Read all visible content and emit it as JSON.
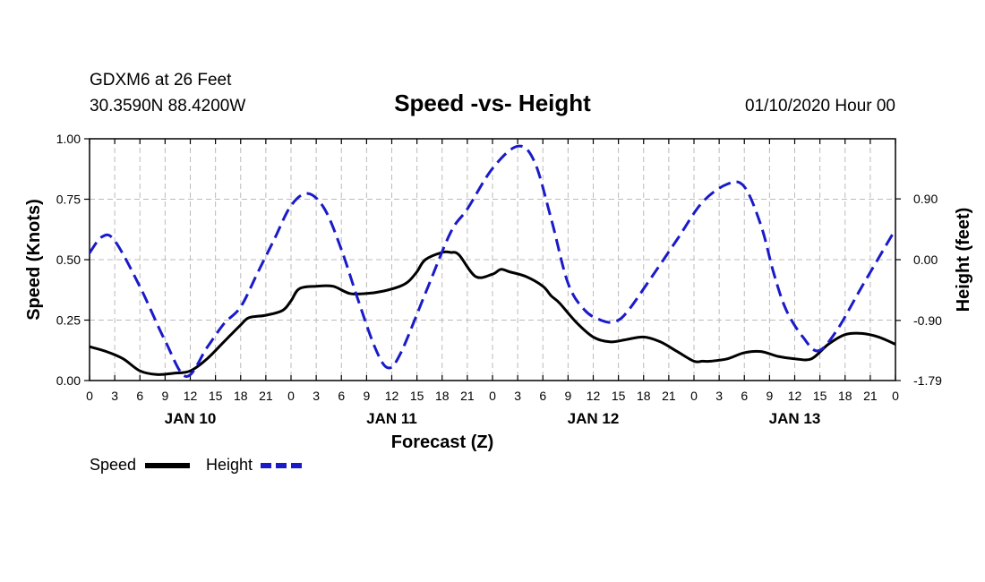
{
  "header": {
    "station": "GDXM6 at 26 Feet",
    "location": "30.3590N 88.4200W",
    "title": "Speed -vs- Height",
    "issued": "01/10/2020 Hour 00"
  },
  "legend": {
    "speed_label": "Speed",
    "height_label": "Height"
  },
  "colors": {
    "speed": "#000000",
    "height": "#1a1ac8",
    "grid": "#bbbbbb"
  },
  "chart_data": {
    "type": "line",
    "title": "Speed -vs- Height",
    "xlabel": "Forecast (Z)",
    "ylabel_left": "Speed (Knots)",
    "ylabel_right": "Height (feet)",
    "x_range": [
      0,
      96
    ],
    "y_left_range": [
      0,
      1.0
    ],
    "y_right_range": [
      -1.79,
      1.79
    ],
    "y_left_ticks": [
      "0.00",
      "0.25",
      "0.50",
      "0.75",
      "1.00"
    ],
    "y_right_ticks": [
      "-1.79",
      "-0.90",
      "0.00",
      "0.90"
    ],
    "y_right_tick_values": [
      -1.79,
      -0.9,
      0.0,
      0.9
    ],
    "x_ticks": [
      0,
      3,
      6,
      9,
      12,
      15,
      18,
      21,
      24,
      27,
      30,
      33,
      36,
      39,
      42,
      45,
      48,
      51,
      54,
      57,
      60,
      63,
      66,
      69,
      72,
      75,
      78,
      81,
      84,
      87,
      90,
      93,
      96
    ],
    "x_tick_labels": [
      "0",
      "3",
      "6",
      "9",
      "12",
      "15",
      "18",
      "21",
      "0",
      "3",
      "6",
      "9",
      "12",
      "15",
      "18",
      "21",
      "0",
      "3",
      "6",
      "9",
      "12",
      "15",
      "18",
      "21",
      "0",
      "3",
      "6",
      "9",
      "12",
      "15",
      "18",
      "21",
      "0"
    ],
    "date_labels": [
      {
        "x": 12,
        "label": "JAN 10"
      },
      {
        "x": 36,
        "label": "JAN 11"
      },
      {
        "x": 60,
        "label": "JAN 12"
      },
      {
        "x": 84,
        "label": "JAN 13"
      }
    ],
    "grid": true,
    "series": [
      {
        "name": "Speed",
        "axis": "left",
        "style": "solid",
        "x": [
          0,
          2,
          4,
          6,
          8,
          10,
          12,
          14,
          16,
          18,
          19,
          21,
          23,
          24,
          25,
          27,
          29,
          31,
          33,
          35,
          37,
          38,
          39,
          40,
          42,
          43,
          44,
          46,
          48,
          49,
          50,
          52,
          54,
          55,
          56,
          58,
          60,
          62,
          64,
          66,
          68,
          70,
          72,
          73,
          74,
          76,
          78,
          80,
          82,
          84,
          86,
          88,
          90,
          92,
          94,
          96
        ],
        "values": [
          0.14,
          0.12,
          0.09,
          0.04,
          0.025,
          0.03,
          0.04,
          0.09,
          0.16,
          0.23,
          0.26,
          0.27,
          0.29,
          0.33,
          0.38,
          0.39,
          0.39,
          0.36,
          0.36,
          0.37,
          0.39,
          0.41,
          0.45,
          0.5,
          0.53,
          0.53,
          0.52,
          0.43,
          0.44,
          0.46,
          0.45,
          0.43,
          0.39,
          0.35,
          0.32,
          0.24,
          0.18,
          0.16,
          0.17,
          0.18,
          0.16,
          0.12,
          0.08,
          0.08,
          0.08,
          0.09,
          0.115,
          0.12,
          0.1,
          0.09,
          0.09,
          0.15,
          0.19,
          0.195,
          0.18,
          0.15
        ]
      },
      {
        "name": "Height",
        "axis": "right",
        "style": "dashed",
        "x": [
          0,
          1.5,
          3,
          6,
          9,
          11.5,
          14,
          16,
          18,
          20,
          22,
          24,
          26,
          28,
          30,
          32,
          34,
          35.5,
          37,
          40,
          43,
          45,
          48,
          51,
          53,
          55,
          57,
          59,
          61,
          62.5,
          64,
          67,
          70,
          73,
          76,
          78,
          80,
          81.5,
          83,
          85,
          86.8,
          89,
          92,
          96
        ],
        "values": [
          0.1,
          0.34,
          0.28,
          -0.4,
          -1.2,
          -1.73,
          -1.3,
          -0.95,
          -0.7,
          -0.2,
          0.3,
          0.8,
          0.98,
          0.75,
          0.15,
          -0.6,
          -1.3,
          -1.6,
          -1.4,
          -0.5,
          0.4,
          0.75,
          1.35,
          1.68,
          1.45,
          0.6,
          -0.35,
          -0.75,
          -0.9,
          -0.92,
          -0.78,
          -0.25,
          0.3,
          0.85,
          1.12,
          1.08,
          0.5,
          -0.2,
          -0.75,
          -1.15,
          -1.35,
          -1.05,
          -0.4,
          0.45
        ]
      }
    ]
  }
}
